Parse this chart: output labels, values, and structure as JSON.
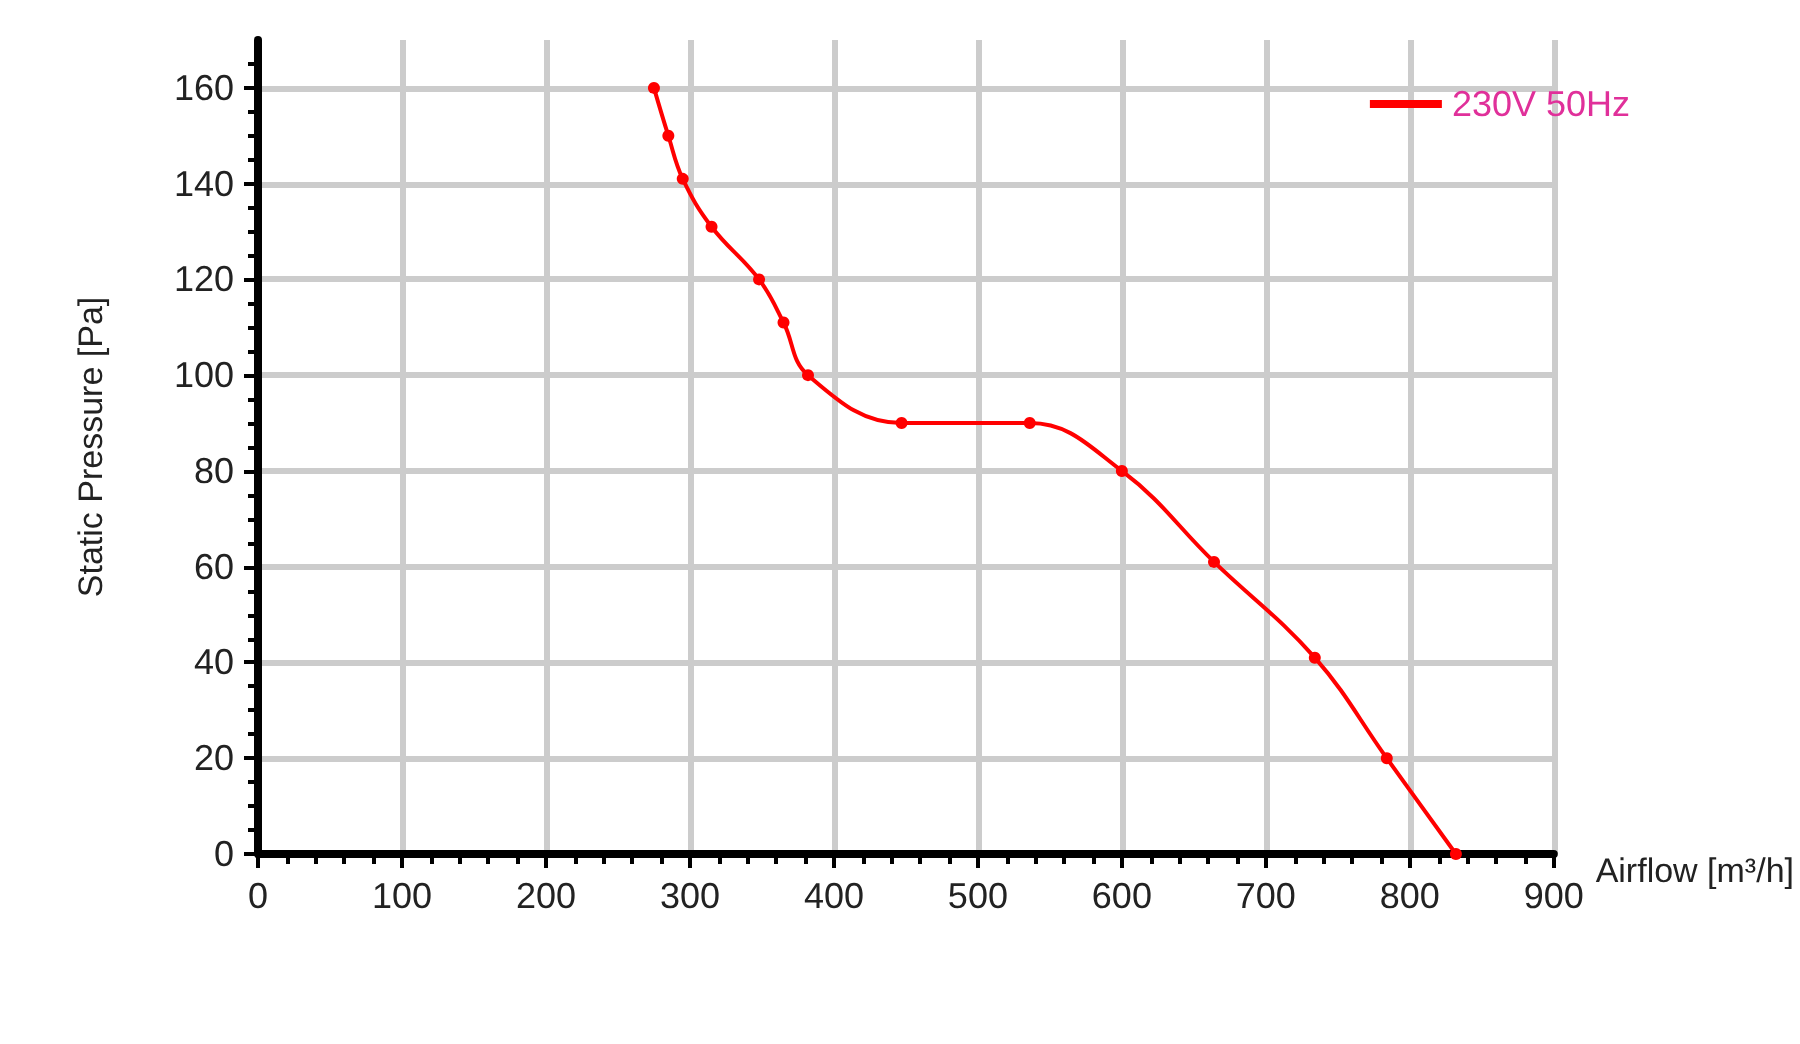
{
  "chart_data": {
    "type": "line",
    "xlabel": "Airflow [m³/h]",
    "ylabel": "Static Pressure [Pa]",
    "x": [
      275,
      285,
      295,
      315,
      348,
      365,
      382,
      447,
      536,
      600,
      664,
      734,
      784,
      832
    ],
    "series": [
      {
        "name": "230V 50Hz",
        "color": "#ff0000",
        "values": [
          160,
          150,
          141,
          131,
          120,
          111,
          100,
          90,
          90,
          80,
          61,
          41,
          20,
          0
        ]
      }
    ],
    "xlim": [
      0,
      900
    ],
    "xticks": [
      0,
      100,
      200,
      300,
      400,
      500,
      600,
      700,
      800,
      900
    ],
    "ylim": [
      0,
      170
    ],
    "yticks": [
      0,
      20,
      40,
      60,
      80,
      100,
      120,
      140,
      160
    ],
    "grid": true,
    "legend": "top right",
    "marker": "circle",
    "line_style": "solid"
  }
}
